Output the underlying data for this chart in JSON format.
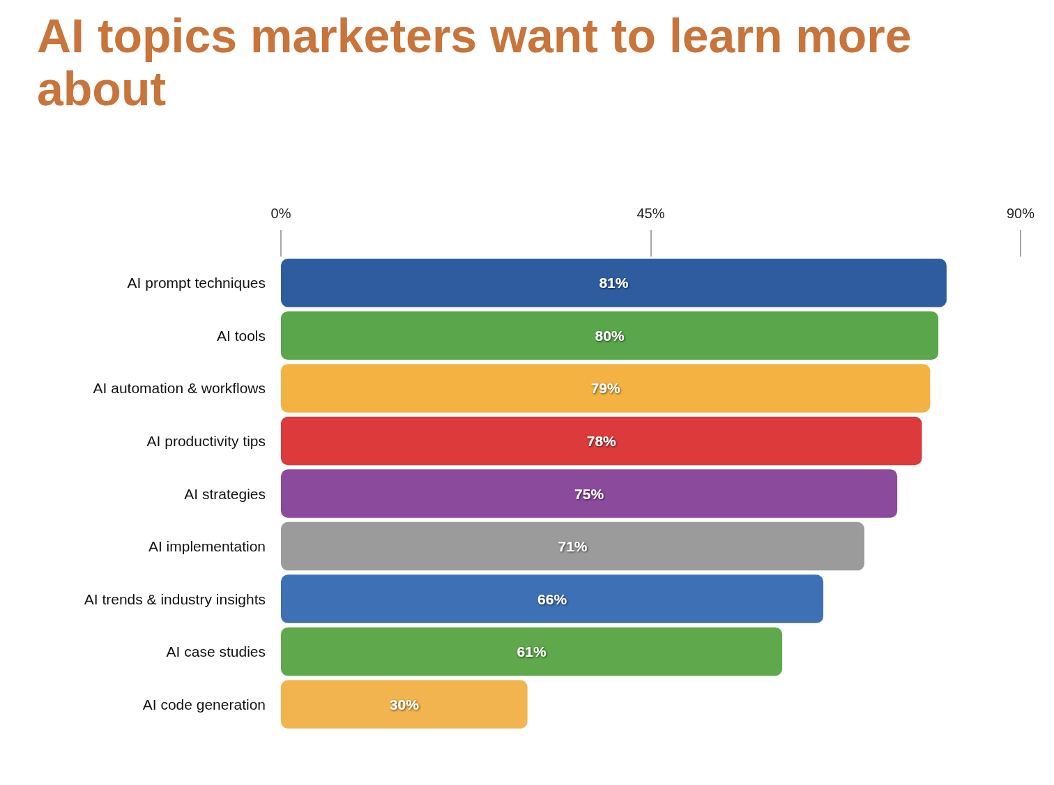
{
  "chart_data": {
    "type": "bar",
    "orientation": "horizontal",
    "title": "AI topics marketers want to learn more about",
    "categories": [
      "AI prompt techniques",
      "AI tools",
      "AI automation & workflows",
      "AI productivity tips",
      "AI strategies",
      "AI implementation",
      "AI trends & industry insights",
      "AI case studies",
      "AI code generation"
    ],
    "values": [
      81,
      80,
      79,
      78,
      75,
      71,
      66,
      61,
      30
    ],
    "value_labels": [
      "81%",
      "80%",
      "79%",
      "78%",
      "75%",
      "71%",
      "66%",
      "61%",
      "30%"
    ],
    "colors": [
      "#2f5c9e",
      "#5aa64b",
      "#f4b243",
      "#dc3a3b",
      "#8c4a9c",
      "#9b9b9b",
      "#3e70b6",
      "#5fa84c",
      "#f2b44e"
    ],
    "xlim": [
      0,
      90
    ],
    "xticks": [
      {
        "value": 0,
        "label": "0%"
      },
      {
        "value": 45,
        "label": "45%"
      },
      {
        "value": 90,
        "label": "90%"
      }
    ],
    "grid": false
  }
}
